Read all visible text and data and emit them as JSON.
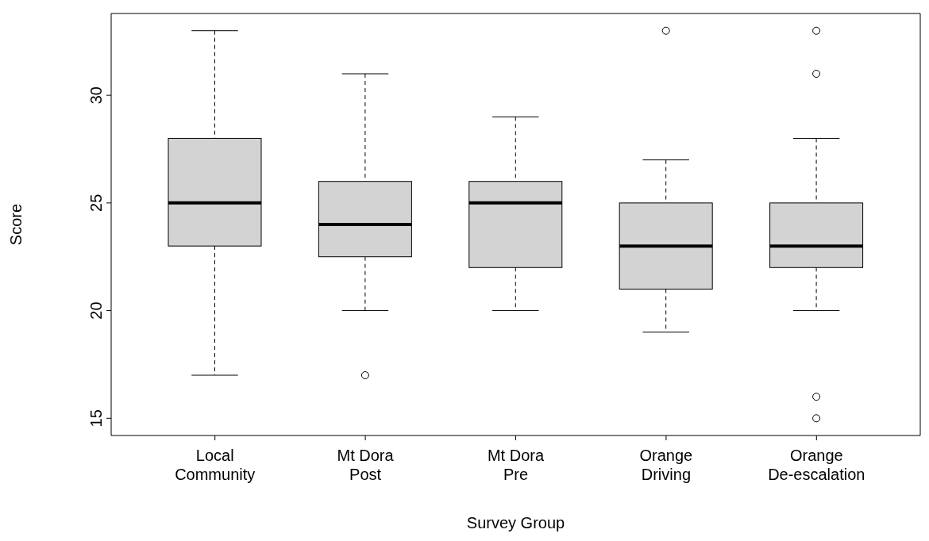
{
  "chart_data": {
    "type": "box",
    "xlabel": "Survey Group",
    "ylabel": "Score",
    "color": "#d3d3d3",
    "categories": [
      "Local\nCommunity",
      "Mt Dora\nPost",
      "Mt Dora\nPre",
      "Orange\nDriving",
      "Orange\nDe-escalation"
    ],
    "boxes": [
      {
        "low": 17,
        "q1": 23,
        "median": 25,
        "q3": 28,
        "high": 33
      },
      {
        "low": 20,
        "q1": 22.5,
        "median": 24,
        "q3": 26,
        "high": 31,
        "outliers": [
          17
        ]
      },
      {
        "low": 20,
        "q1": 22,
        "median": 25,
        "q3": 26,
        "high": 29
      },
      {
        "low": 19,
        "q1": 21,
        "median": 23,
        "q3": 25,
        "high": 27,
        "outliers": [
          33
        ]
      },
      {
        "low": 20,
        "q1": 22,
        "median": 23,
        "q3": 25,
        "high": 28,
        "outliers": [
          33,
          31,
          16,
          15
        ]
      }
    ],
    "ylim": [
      14.2,
      33.8
    ],
    "yticks": [
      15,
      20,
      25,
      30
    ]
  }
}
